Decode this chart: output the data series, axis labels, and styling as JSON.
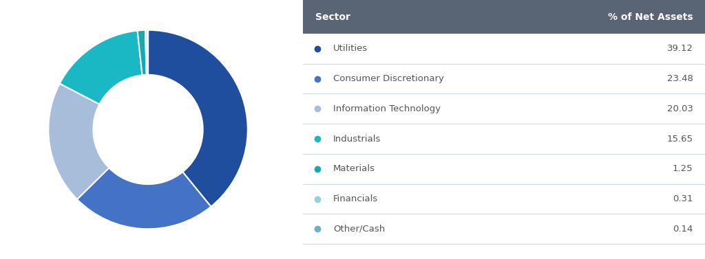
{
  "sectors": [
    "Utilities",
    "Consumer Discretionary",
    "Information Technology",
    "Industrials",
    "Materials",
    "Financials",
    "Other/Cash"
  ],
  "values": [
    39.12,
    23.48,
    20.03,
    15.65,
    1.25,
    0.31,
    0.14
  ],
  "colors": [
    "#1f4e9e",
    "#4472c4",
    "#a8bdd9",
    "#1ab8c4",
    "#17a8b0",
    "#90d4db",
    "#6ab0c8"
  ],
  "header_bg": "#596475",
  "header_text": "#ffffff",
  "row_divider": "#d0d8e4",
  "label_col": "Sector",
  "value_col": "% of Net Assets",
  "dot_colors": [
    "#1f4e9e",
    "#4472c4",
    "#a8bdd9",
    "#1ab8c4",
    "#17a8b0",
    "#90d4db",
    "#6ab0c8"
  ],
  "background": "#ffffff"
}
